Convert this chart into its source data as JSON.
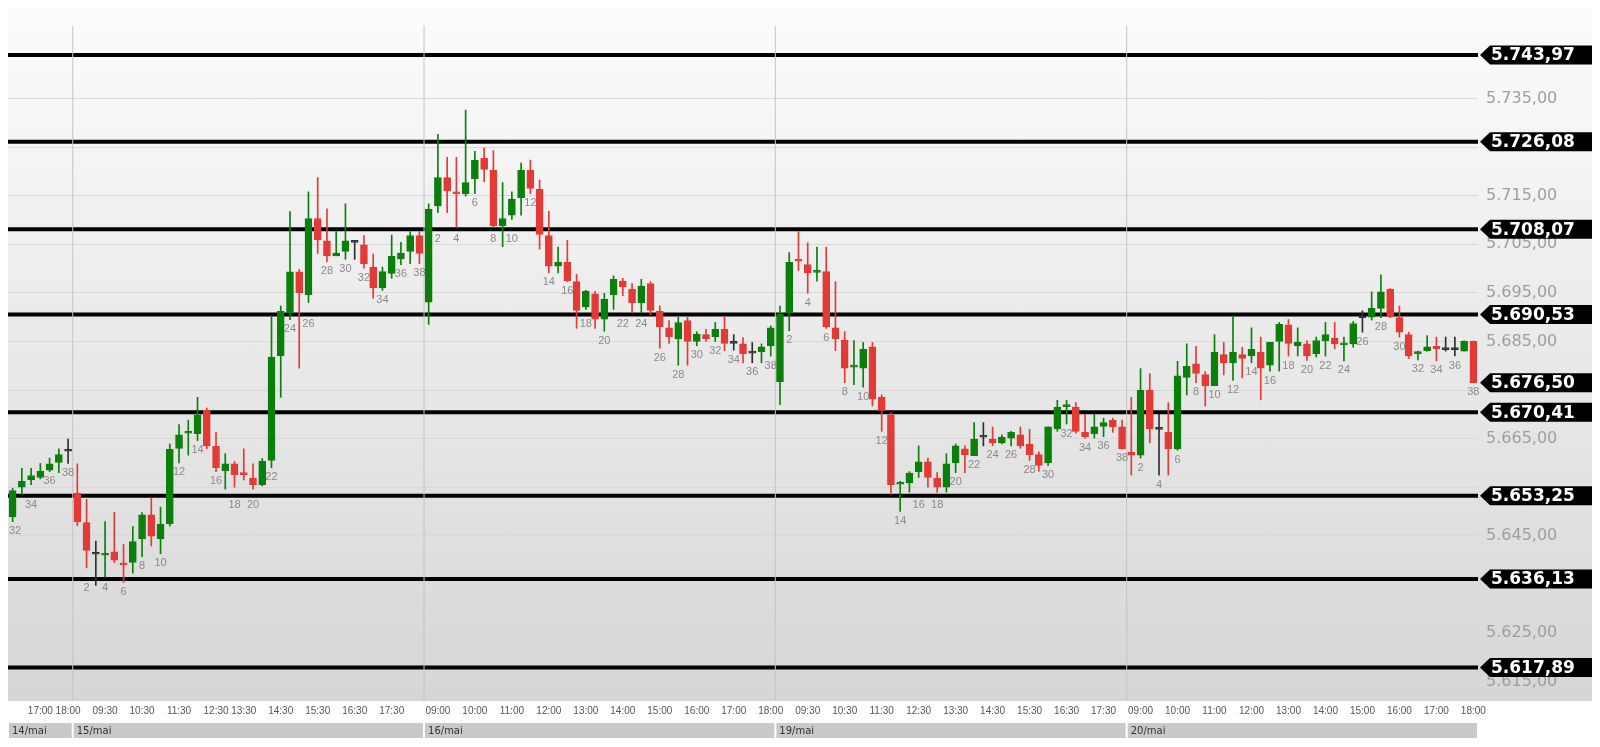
{
  "chart_data": {
    "type": "candlestick",
    "categories": [
      null,
      null,
      null,
      "17:00",
      null,
      null,
      "18:00",
      null,
      null,
      null,
      "09:30",
      null,
      null,
      null,
      "10:30",
      null,
      null,
      null,
      "11:30",
      null,
      null,
      null,
      "12:30",
      null,
      null,
      "13:30",
      null,
      null,
      null,
      "14:30",
      null,
      null,
      null,
      "15:30",
      null,
      null,
      null,
      "16:30",
      null,
      null,
      null,
      "17:30",
      null,
      null,
      null,
      null,
      "09:00",
      null,
      null,
      null,
      "10:00",
      null,
      null,
      null,
      "11:00",
      null,
      null,
      null,
      "12:00",
      null,
      null,
      null,
      "13:00",
      null,
      null,
      null,
      "14:00",
      null,
      null,
      null,
      "15:00",
      null,
      null,
      null,
      "16:00",
      null,
      null,
      null,
      "17:00",
      null,
      null,
      null,
      "18:00",
      null,
      null,
      null,
      "09:30",
      null,
      null,
      null,
      "10:30",
      null,
      null,
      null,
      "11:30",
      null,
      null,
      null,
      "12:30",
      null,
      null,
      null,
      "13:30",
      null,
      null,
      null,
      "14:30",
      null,
      null,
      null,
      "15:30",
      null,
      null,
      null,
      "16:30",
      null,
      null,
      null,
      "17:30",
      null,
      null,
      null,
      "09:00",
      null,
      null,
      null,
      "10:00",
      null,
      null,
      null,
      "11:00",
      null,
      null,
      null,
      "12:00",
      null,
      null,
      null,
      "13:00",
      null,
      null,
      null,
      "14:00",
      null,
      null,
      null,
      "15:00",
      null,
      null,
      null,
      "16:00",
      null,
      null,
      null,
      "17:00",
      null,
      null,
      null,
      "18:00"
    ],
    "ohlc": [
      [
        5648.9,
        5654.8,
        5647.9,
        5654.3
      ],
      [
        5655.0,
        5658.9,
        5653.5,
        5656.2
      ],
      [
        5656.5,
        5658.9,
        5655.5,
        5657.4
      ],
      [
        5657.0,
        5659.9,
        5656.7,
        5658.3
      ],
      [
        5658.5,
        5661.0,
        5658.2,
        5659.8
      ],
      [
        5660.1,
        5662.9,
        5658.0,
        5661.7
      ],
      [
        5662.4,
        5664.9,
        5659.9,
        5662.4
      ],
      [
        5653.8,
        5659.8,
        5647.1,
        5647.9
      ],
      [
        5647.7,
        5652.5,
        5638.4,
        5642.0
      ],
      [
        5641.2,
        5643.9,
        5634.8,
        5641.2
      ],
      [
        5641.0,
        5647.9,
        5636.5,
        5641.2
      ],
      [
        5641.7,
        5649.8,
        5639.5,
        5640.0
      ],
      [
        5639.3,
        5643.2,
        5635.4,
        5639.0
      ],
      [
        5639.5,
        5646.9,
        5637.3,
        5643.8
      ],
      [
        5644.4,
        5649.8,
        5640.7,
        5649.3
      ],
      [
        5649.3,
        5652.8,
        5642.9,
        5644.9
      ],
      [
        5644.4,
        5650.9,
        5641.3,
        5647.4
      ],
      [
        5647.5,
        5663.9,
        5647.0,
        5662.8
      ],
      [
        5663.0,
        5667.9,
        5660.0,
        5665.8
      ],
      [
        5666.1,
        5668.8,
        5661.6,
        5666.2
      ],
      [
        5666.0,
        5673.5,
        5664.6,
        5669.9
      ],
      [
        5670.8,
        5671.3,
        5662.9,
        5663.5
      ],
      [
        5663.4,
        5666.3,
        5658.2,
        5659.0
      ],
      [
        5658.4,
        5661.9,
        5654.6,
        5659.8
      ],
      [
        5659.8,
        5660.3,
        5655.0,
        5657.6
      ],
      [
        5657.9,
        5662.9,
        5656.5,
        5657.6
      ],
      [
        5656.9,
        5659.8,
        5654.6,
        5655.5
      ],
      [
        5655.5,
        5660.9,
        5655.3,
        5660.3
      ],
      [
        5660.5,
        5690.3,
        5659.0,
        5681.8
      ],
      [
        5682.0,
        5692.3,
        5673.5,
        5691.2
      ],
      [
        5690.9,
        5711.7,
        5689.5,
        5699.3
      ],
      [
        5699.3,
        5699.8,
        5679.5,
        5695.0
      ],
      [
        5694.6,
        5715.8,
        5693.0,
        5710.3
      ],
      [
        5710.3,
        5718.7,
        5703.1,
        5705.9
      ],
      [
        5705.7,
        5712.3,
        5701.4,
        5702.6
      ],
      [
        5702.6,
        5707.7,
        5702.6,
        5703.2
      ],
      [
        5703.5,
        5713.3,
        5701.9,
        5705.7
      ],
      [
        5705.4,
        5705.8,
        5701.9,
        5705.4
      ],
      [
        5704.9,
        5706.8,
        5700.1,
        5701.0
      ],
      [
        5700.3,
        5703.0,
        5693.9,
        5696.0
      ],
      [
        5696.0,
        5700.3,
        5695.5,
        5699.4
      ],
      [
        5699.0,
        5706.9,
        5698.0,
        5702.5
      ],
      [
        5702.0,
        5705.4,
        5700.8,
        5703.2
      ],
      [
        5703.5,
        5707.6,
        5701.0,
        5706.8
      ],
      [
        5706.8,
        5707.6,
        5701.0,
        5703.1
      ],
      [
        5693.1,
        5713.3,
        5688.5,
        5712.2
      ],
      [
        5712.9,
        5727.6,
        5711.5,
        5718.7
      ],
      [
        5718.7,
        5722.9,
        5711.5,
        5716.0
      ],
      [
        5715.7,
        5722.9,
        5708.5,
        5715.4
      ],
      [
        5715.4,
        5732.6,
        5714.9,
        5717.7
      ],
      [
        5718.5,
        5724.1,
        5715.4,
        5722.3
      ],
      [
        5722.7,
        5724.8,
        5717.9,
        5720.4
      ],
      [
        5720.2,
        5724.3,
        5708.5,
        5708.8
      ],
      [
        5708.8,
        5717.7,
        5704.5,
        5710.3
      ],
      [
        5711.0,
        5715.8,
        5710.1,
        5714.3
      ],
      [
        5714.6,
        5721.7,
        5711.0,
        5720.2
      ],
      [
        5720.2,
        5722.3,
        5715.4,
        5716.5
      ],
      [
        5716.3,
        5718.2,
        5704.0,
        5707.0
      ],
      [
        5706.8,
        5711.8,
        5699.1,
        5700.5
      ],
      [
        5700.5,
        5704.4,
        5699.1,
        5701.3
      ],
      [
        5701.3,
        5705.8,
        5697.3,
        5697.5
      ],
      [
        5697.3,
        5698.8,
        5687.7,
        5691.4
      ],
      [
        5692.1,
        5695.5,
        5691.6,
        5695.3
      ],
      [
        5694.8,
        5695.3,
        5687.7,
        5689.6
      ],
      [
        5689.6,
        5694.9,
        5687.1,
        5693.7
      ],
      [
        5694.6,
        5698.5,
        5691.6,
        5697.8
      ],
      [
        5697.4,
        5698.0,
        5694.4,
        5696.2
      ],
      [
        5695.8,
        5696.9,
        5690.9,
        5693.0
      ],
      [
        5693.0,
        5697.8,
        5690.9,
        5696.4
      ],
      [
        5696.9,
        5697.3,
        5690.5,
        5691.4
      ],
      [
        5691.2,
        5692.3,
        5683.6,
        5688.0
      ],
      [
        5687.8,
        5689.3,
        5684.6,
        5686.0
      ],
      [
        5685.5,
        5690.0,
        5680.1,
        5688.9
      ],
      [
        5689.3,
        5690.0,
        5680.1,
        5685.0
      ],
      [
        5685.0,
        5687.0,
        5684.1,
        5686.5
      ],
      [
        5686.4,
        5687.5,
        5685.0,
        5685.5
      ],
      [
        5686.0,
        5688.9,
        5685.0,
        5687.5
      ],
      [
        5687.5,
        5690.2,
        5683.1,
        5684.6
      ],
      [
        5684.6,
        5686.4,
        5683.2,
        5684.6
      ],
      [
        5684.5,
        5685.8,
        5680.6,
        5682.5
      ],
      [
        5682.6,
        5684.8,
        5680.6,
        5682.6
      ],
      [
        5682.9,
        5684.5,
        5680.6,
        5683.9
      ],
      [
        5684.1,
        5688.2,
        5682.0,
        5687.8
      ],
      [
        5676.7,
        5692.3,
        5672.0,
        5690.7
      ],
      [
        5690.9,
        5703.3,
        5687.2,
        5701.3
      ],
      [
        5701.8,
        5707.6,
        5699.6,
        5701.5
      ],
      [
        5700.8,
        5705.3,
        5694.9,
        5699.1
      ],
      [
        5699.2,
        5704.4,
        5697.4,
        5699.3
      ],
      [
        5699.4,
        5704.4,
        5687.7,
        5688.0
      ],
      [
        5687.8,
        5697.3,
        5683.1,
        5685.5
      ],
      [
        5685.3,
        5687.0,
        5676.5,
        5679.5
      ],
      [
        5679.7,
        5685.2,
        5676.1,
        5679.8
      ],
      [
        5679.5,
        5684.8,
        5675.6,
        5683.4
      ],
      [
        5683.9,
        5684.8,
        5671.7,
        5673.1
      ],
      [
        5673.5,
        5674.0,
        5666.5,
        5670.8
      ],
      [
        5669.9,
        5670.3,
        5653.5,
        5655.5
      ],
      [
        5655.6,
        5656.2,
        5650.0,
        5655.7
      ],
      [
        5655.9,
        5658.2,
        5654.0,
        5657.9
      ],
      [
        5658.2,
        5663.5,
        5657.0,
        5660.2
      ],
      [
        5660.2,
        5661.0,
        5655.0,
        5657.0
      ],
      [
        5656.9,
        5658.0,
        5654.0,
        5655.0
      ],
      [
        5655.0,
        5661.9,
        5654.0,
        5659.8
      ],
      [
        5660.0,
        5663.9,
        5658.0,
        5663.5
      ],
      [
        5662.9,
        5663.5,
        5658.0,
        5661.7
      ],
      [
        5661.5,
        5668.3,
        5661.5,
        5664.9
      ],
      [
        5665.3,
        5668.3,
        5663.5,
        5665.3
      ],
      [
        5664.9,
        5667.4,
        5663.5,
        5664.1
      ],
      [
        5664.1,
        5665.8,
        5663.9,
        5665.3
      ],
      [
        5665.1,
        5666.5,
        5663.5,
        5666.3
      ],
      [
        5665.8,
        5667.4,
        5663.0,
        5663.5
      ],
      [
        5663.9,
        5666.9,
        5660.5,
        5661.7
      ],
      [
        5661.7,
        5662.3,
        5658.3,
        5659.5
      ],
      [
        5660.0,
        5667.4,
        5659.5,
        5667.4
      ],
      [
        5667.0,
        5672.9,
        5666.5,
        5671.5
      ],
      [
        5671.6,
        5672.9,
        5668.0,
        5671.7
      ],
      [
        5671.5,
        5672.4,
        5666.1,
        5666.5
      ],
      [
        5666.3,
        5670.0,
        5665.1,
        5665.4
      ],
      [
        5666.0,
        5670.0,
        5665.1,
        5667.4
      ],
      [
        5667.5,
        5669.2,
        5665.4,
        5668.3
      ],
      [
        5668.8,
        5669.2,
        5666.3,
        5667.4
      ],
      [
        5667.4,
        5668.8,
        5662.9,
        5662.9
      ],
      [
        5662.2,
        5673.5,
        5657.5,
        5661.6
      ],
      [
        5661.6,
        5679.4,
        5661.0,
        5675.0
      ],
      [
        5675.0,
        5678.4,
        5664.1,
        5667.0
      ],
      [
        5666.9,
        5670.0,
        5657.5,
        5666.9
      ],
      [
        5666.3,
        5672.4,
        5657.5,
        5662.9
      ],
      [
        5662.9,
        5680.9,
        5662.6,
        5677.9
      ],
      [
        5677.6,
        5684.5,
        5674.0,
        5679.9
      ],
      [
        5680.4,
        5684.0,
        5676.5,
        5678.4
      ],
      [
        5678.2,
        5678.8,
        5671.7,
        5675.9
      ],
      [
        5675.9,
        5686.4,
        5675.9,
        5682.8
      ],
      [
        5682.3,
        5684.8,
        5678.1,
        5680.6
      ],
      [
        5680.6,
        5690.2,
        5677.0,
        5682.8
      ],
      [
        5682.3,
        5683.8,
        5677.5,
        5681.5
      ],
      [
        5682.0,
        5687.8,
        5680.6,
        5683.4
      ],
      [
        5682.8,
        5685.9,
        5673.0,
        5679.5
      ],
      [
        5680.1,
        5684.8,
        5678.9,
        5684.8
      ],
      [
        5685.0,
        5688.9,
        5678.9,
        5688.5
      ],
      [
        5688.4,
        5689.5,
        5682.0,
        5684.6
      ],
      [
        5684.1,
        5687.8,
        5682.0,
        5684.8
      ],
      [
        5684.5,
        5685.2,
        5681.1,
        5682.0
      ],
      [
        5682.5,
        5685.9,
        5681.8,
        5685.2
      ],
      [
        5685.1,
        5688.9,
        5682.0,
        5686.4
      ],
      [
        5685.7,
        5688.9,
        5683.5,
        5684.5
      ],
      [
        5684.3,
        5685.9,
        5681.0,
        5684.4
      ],
      [
        5684.5,
        5689.1,
        5683.8,
        5688.7
      ],
      [
        5689.9,
        5691.3,
        5686.9,
        5689.9
      ],
      [
        5690.0,
        5695.2,
        5689.4,
        5691.8
      ],
      [
        5691.8,
        5698.7,
        5689.9,
        5695.2
      ],
      [
        5695.7,
        5695.9,
        5689.9,
        5690.1
      ],
      [
        5689.9,
        5692.3,
        5685.9,
        5686.9
      ],
      [
        5686.4,
        5686.9,
        5681.5,
        5682.0
      ],
      [
        5682.5,
        5683.0,
        5681.2,
        5682.6
      ],
      [
        5683.1,
        5686.2,
        5683.0,
        5683.9
      ],
      [
        5684.0,
        5685.9,
        5681.0,
        5683.5
      ],
      [
        5683.3,
        5685.9,
        5683.0,
        5683.3
      ],
      [
        5683.3,
        5685.9,
        5682.0,
        5683.3
      ],
      [
        5683.0,
        5685.1,
        5683.0,
        5685.0
      ],
      [
        5685.0,
        5685.1,
        5676.5,
        5676.5
      ]
    ],
    "value_labels": [
      "32",
      null,
      "34",
      null,
      "36",
      null,
      "38",
      null,
      "2",
      null,
      "4",
      null,
      "6",
      null,
      "8",
      null,
      "10",
      null,
      "12",
      null,
      "14",
      null,
      "16",
      null,
      "18",
      null,
      "20",
      null,
      "22",
      null,
      "24",
      null,
      "26",
      null,
      "28",
      null,
      "30",
      null,
      "32",
      null,
      "34",
      null,
      "36",
      null,
      "38",
      null,
      "2",
      null,
      "4",
      null,
      "6",
      null,
      "8",
      null,
      "10",
      null,
      "12",
      null,
      "14",
      null,
      "16",
      null,
      "18",
      null,
      "20",
      null,
      "22",
      null,
      "24",
      null,
      "26",
      null,
      "28",
      null,
      "30",
      null,
      "32",
      null,
      "34",
      null,
      "36",
      null,
      "38",
      null,
      "2",
      null,
      "4",
      null,
      "6",
      null,
      "8",
      null,
      "10",
      null,
      "12",
      null,
      "14",
      null,
      "16",
      null,
      "18",
      null,
      "20",
      null,
      "22",
      null,
      "24",
      null,
      "26",
      null,
      "28",
      null,
      "30",
      null,
      "32",
      null,
      "34",
      null,
      "36",
      null,
      "38",
      null,
      "2",
      null,
      "4",
      null,
      "6",
      null,
      "8",
      null,
      "10",
      null,
      "12",
      null,
      "14",
      null,
      "16",
      null,
      "18",
      null,
      "20",
      null,
      "22",
      null,
      "24",
      null,
      "26",
      null,
      "28",
      null,
      "30",
      null,
      "32",
      null,
      "34",
      null,
      "36",
      null,
      "38"
    ],
    "ylim": [
      5611,
      5750
    ],
    "yticks": [
      {
        "value": 5615,
        "label": "5.615,00"
      },
      {
        "value": 5625,
        "label": "5.625,00"
      },
      {
        "value": 5645,
        "label": "5.645,00"
      },
      {
        "value": 5655,
        "label": null
      },
      {
        "value": 5665,
        "label": "5.665,00"
      },
      {
        "value": 5675,
        "label": null
      },
      {
        "value": 5685,
        "label": "5.685,00"
      },
      {
        "value": 5695,
        "label": "5.695,00"
      },
      {
        "value": 5705,
        "label": "5.705,00"
      },
      {
        "value": 5715,
        "label": "5.715,00"
      },
      {
        "value": 5725,
        "label": null
      },
      {
        "value": 5735,
        "label": "5.735,00"
      }
    ],
    "grid": "y",
    "legend": false,
    "ref_lines": [
      {
        "axis": "y",
        "value": 5743.97,
        "label": "5.743,97",
        "color": "#000000"
      },
      {
        "axis": "y",
        "value": 5726.08,
        "label": "5.726,08",
        "color": "#000000"
      },
      {
        "axis": "y",
        "value": 5708.07,
        "label": "5.708,07",
        "color": "#000000"
      },
      {
        "axis": "y",
        "value": 5690.53,
        "label": "5.690,53",
        "color": "#000000"
      },
      {
        "axis": "y",
        "value": 5670.41,
        "label": "5.670,41",
        "color": "#000000"
      },
      {
        "axis": "y",
        "value": 5653.25,
        "label": "5.653,25",
        "color": "#000000"
      },
      {
        "axis": "y",
        "value": 5636.13,
        "label": "5.636,13",
        "color": "#000000"
      },
      {
        "axis": "y",
        "value": 5617.89,
        "label": "5.617,89",
        "color": "#000000"
      }
    ],
    "annotations": [
      "14/mai",
      "15/mai",
      "16/mai",
      "19/mai",
      "20/mai",
      "5.676,50"
    ]
  }
}
